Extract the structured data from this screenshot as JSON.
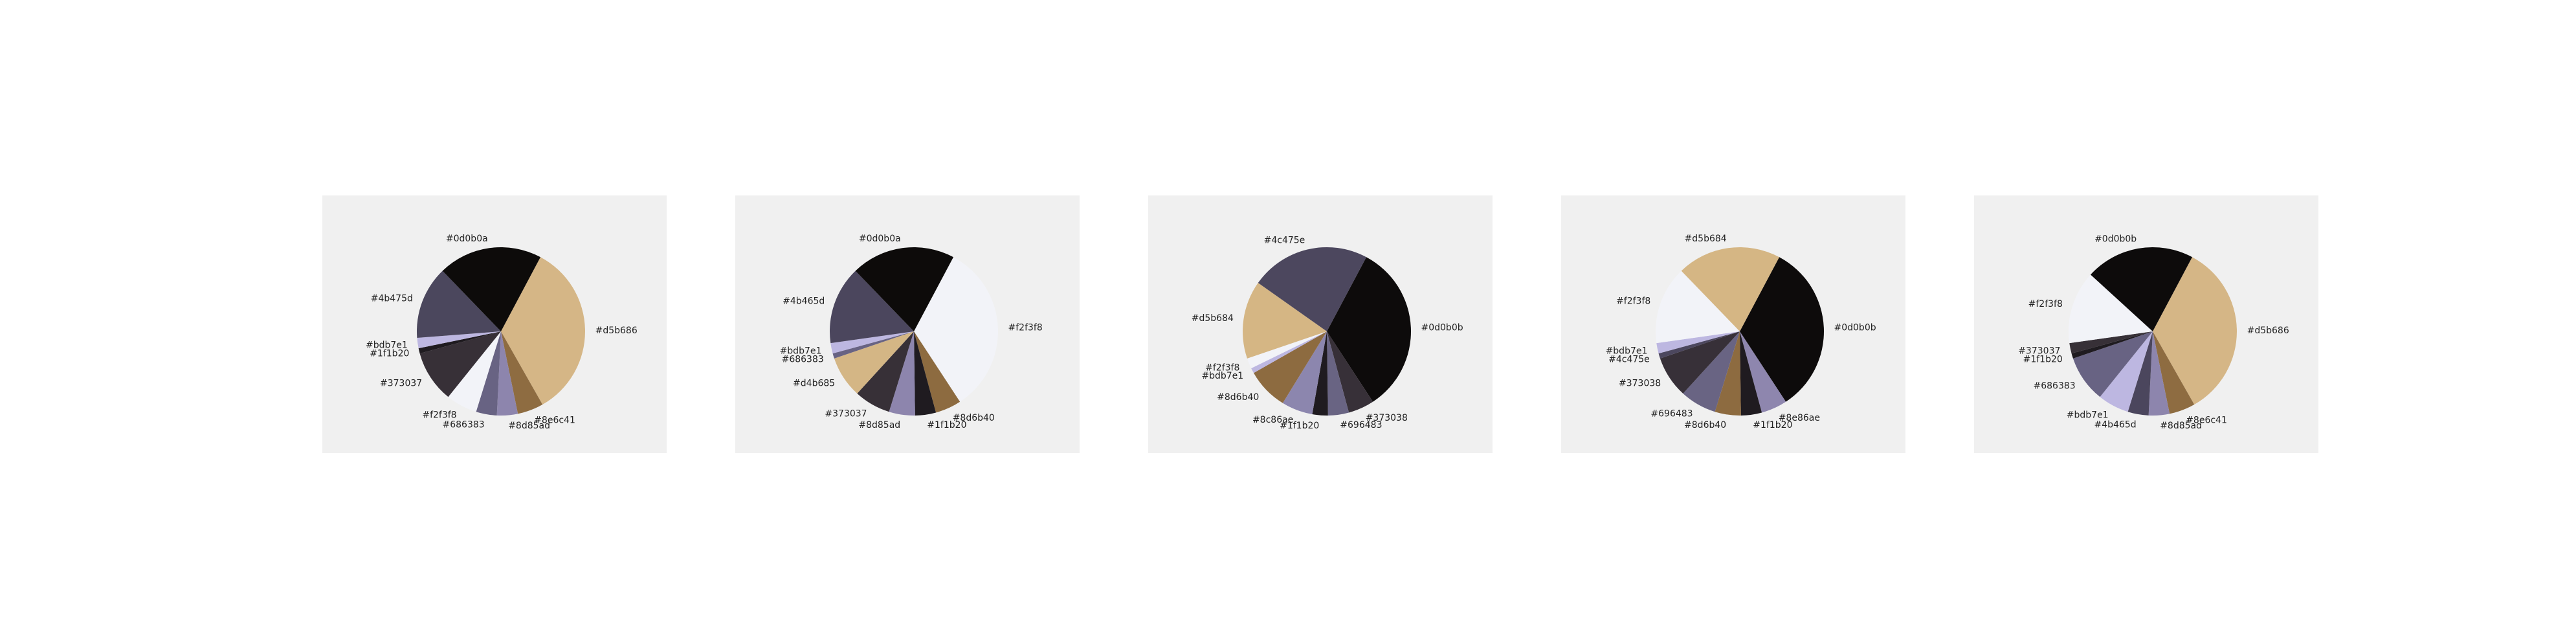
{
  "chart_data": [
    {
      "type": "pie",
      "title": "",
      "slices": [
        {
          "label": "#d5b686",
          "value": 34.0,
          "color": "#d5b686"
        },
        {
          "label": "#8e6c41",
          "value": 5.0,
          "color": "#8e6c41"
        },
        {
          "label": "#8d85ad",
          "value": 4.0,
          "color": "#8d85ad"
        },
        {
          "label": "#686383",
          "value": 4.0,
          "color": "#686383"
        },
        {
          "label": "#f2f3f8",
          "value": 6.0,
          "color": "#f2f3f8"
        },
        {
          "label": "#373037",
          "value": 10.0,
          "color": "#373037"
        },
        {
          "label": "#1f1b20",
          "value": 1.0,
          "color": "#1f1b20"
        },
        {
          "label": "#bdb7e1",
          "value": 2.0,
          "color": "#bdb7e1"
        },
        {
          "label": "#4b475d",
          "value": 14.0,
          "color": "#4b475d"
        },
        {
          "label": "#0d0b0a",
          "value": 20.0,
          "color": "#0d0b0a"
        }
      ]
    },
    {
      "type": "pie",
      "title": "",
      "slices": [
        {
          "label": "#f2f3f8",
          "value": 33.0,
          "color": "#f2f3f8"
        },
        {
          "label": "#8d6b40",
          "value": 5.0,
          "color": "#8d6b40"
        },
        {
          "label": "#1f1b20",
          "value": 4.0,
          "color": "#1f1b20"
        },
        {
          "label": "#8d85ad",
          "value": 5.0,
          "color": "#8d85ad"
        },
        {
          "label": "#373037",
          "value": 7.0,
          "color": "#373037"
        },
        {
          "label": "#d4b685",
          "value": 8.0,
          "color": "#d4b685"
        },
        {
          "label": "#686383",
          "value": 1.0,
          "color": "#686383"
        },
        {
          "label": "#bdb7e1",
          "value": 2.0,
          "color": "#bdb7e1"
        },
        {
          "label": "#4b465d",
          "value": 15.0,
          "color": "#4b465d"
        },
        {
          "label": "#0d0b0a",
          "value": 20.0,
          "color": "#0d0b0a"
        }
      ]
    },
    {
      "type": "pie",
      "title": "",
      "slices": [
        {
          "label": "#0d0b0b",
          "value": 33.0,
          "color": "#0d0b0b"
        },
        {
          "label": "#373038",
          "value": 5.0,
          "color": "#373038"
        },
        {
          "label": "#696483",
          "value": 4.0,
          "color": "#696483"
        },
        {
          "label": "#1f1b20",
          "value": 3.0,
          "color": "#1f1b20"
        },
        {
          "label": "#8c86ae",
          "value": 6.0,
          "color": "#8c86ae"
        },
        {
          "label": "#8d6b40",
          "value": 8.0,
          "color": "#8d6b40"
        },
        {
          "label": "#bdb7e1",
          "value": 1.0,
          "color": "#bdb7e1"
        },
        {
          "label": "#f2f3f8",
          "value": 2.0,
          "color": "#f2f3f8"
        },
        {
          "label": "#d5b684",
          "value": 15.0,
          "color": "#d5b684"
        },
        {
          "label": "#4c475e",
          "value": 23.0,
          "color": "#4c475e"
        }
      ]
    },
    {
      "type": "pie",
      "title": "",
      "slices": [
        {
          "label": "#0d0b0b",
          "value": 33.0,
          "color": "#0d0b0b"
        },
        {
          "label": "#8e86ae",
          "value": 5.0,
          "color": "#8e86ae"
        },
        {
          "label": "#1f1b20",
          "value": 4.0,
          "color": "#1f1b20"
        },
        {
          "label": "#8d6b40",
          "value": 5.0,
          "color": "#8d6b40"
        },
        {
          "label": "#696483",
          "value": 7.0,
          "color": "#696483"
        },
        {
          "label": "#373038",
          "value": 8.0,
          "color": "#373038"
        },
        {
          "label": "#4c475e",
          "value": 1.0,
          "color": "#4c475e"
        },
        {
          "label": "#bdb7e1",
          "value": 2.0,
          "color": "#bdb7e1"
        },
        {
          "label": "#f2f3f8",
          "value": 15.0,
          "color": "#f2f3f8"
        },
        {
          "label": "#d5b684",
          "value": 20.0,
          "color": "#d5b684"
        }
      ]
    },
    {
      "type": "pie",
      "title": "",
      "slices": [
        {
          "label": "#d5b686",
          "value": 34.0,
          "color": "#d5b686"
        },
        {
          "label": "#8e6c41",
          "value": 5.0,
          "color": "#8e6c41"
        },
        {
          "label": "#8d85ad",
          "value": 4.0,
          "color": "#8d85ad"
        },
        {
          "label": "#4b465d",
          "value": 4.0,
          "color": "#4b465d"
        },
        {
          "label": "#bdb7e1",
          "value": 6.0,
          "color": "#bdb7e1"
        },
        {
          "label": "#686383",
          "value": 9.0,
          "color": "#686383"
        },
        {
          "label": "#1f1b20",
          "value": 1.0,
          "color": "#1f1b20"
        },
        {
          "label": "#373037",
          "value": 2.0,
          "color": "#373037"
        },
        {
          "label": "#f2f3f8",
          "value": 14.0,
          "color": "#f2f3f8"
        },
        {
          "label": "#0d0b0b",
          "value": 21.0,
          "color": "#0d0b0b"
        }
      ]
    }
  ]
}
